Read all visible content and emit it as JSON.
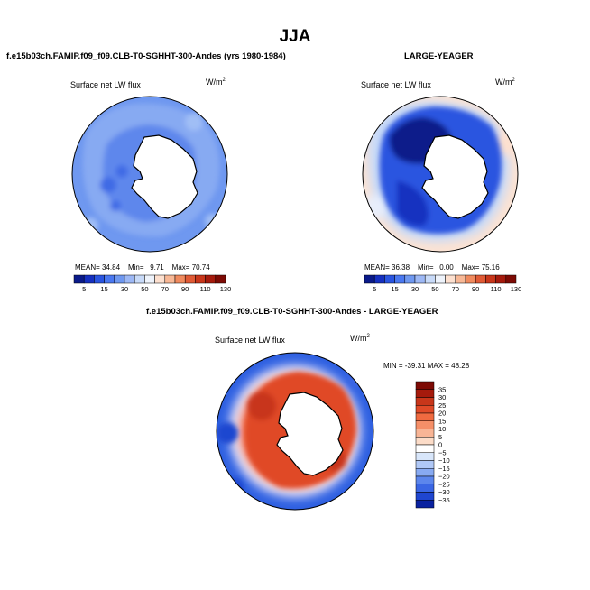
{
  "title": "JJA",
  "colors": {
    "ocean_base": "#6f98f0",
    "land": "#ffffff",
    "coast": "#000000"
  },
  "chart_data": [
    {
      "type": "heatmap",
      "projection": "polar-stereographic-south",
      "title": "f.e15b03ch.FAMIP.f09_f09.CLB-T0-SGHHT-300-Andes (yrs 1980-1984)",
      "variable": "Surface net LW flux",
      "units_base": "W/m",
      "units_sup": "2",
      "stats": {
        "mean_label": "MEAN=",
        "mean": "34.84",
        "min_label": "Min=",
        "min": "9.71",
        "max_label": "Max=",
        "max": "70.74"
      },
      "colorbar": {
        "orientation": "horizontal",
        "tick_labels": [
          "5",
          "15",
          "30",
          "50",
          "70",
          "90",
          "110",
          "130"
        ],
        "colors": [
          "#0a1a8a",
          "#1530c0",
          "#2a55e0",
          "#4a78f0",
          "#6f98f0",
          "#9db8f5",
          "#c8daf8",
          "#eef3fb",
          "#fde0cf",
          "#f8b896",
          "#f08a5e",
          "#e05a35",
          "#c8361a",
          "#a51a0c",
          "#7d0a04"
        ]
      }
    },
    {
      "type": "heatmap",
      "projection": "polar-stereographic-south",
      "title": "LARGE-YEAGER",
      "variable": "Surface net LW flux",
      "units_base": "W/m",
      "units_sup": "2",
      "stats": {
        "mean_label": "MEAN=",
        "mean": "36.38",
        "min_label": "Min=",
        "min": "0.00",
        "max_label": "Max=",
        "max": "75.16"
      },
      "colorbar": {
        "orientation": "horizontal",
        "tick_labels": [
          "5",
          "15",
          "30",
          "50",
          "70",
          "90",
          "110",
          "130"
        ],
        "colors": [
          "#0a1a8a",
          "#1530c0",
          "#2a55e0",
          "#4a78f0",
          "#6f98f0",
          "#9db8f5",
          "#c8daf8",
          "#eef3fb",
          "#fde0cf",
          "#f8b896",
          "#f08a5e",
          "#e05a35",
          "#c8361a",
          "#a51a0c",
          "#7d0a04"
        ]
      }
    },
    {
      "type": "heatmap",
      "projection": "polar-stereographic-south",
      "title": "f.e15b03ch.FAMIP.f09_f09.CLB-T0-SGHHT-300-Andes - LARGE-YEAGER",
      "variable": "Surface net LW flux",
      "units_base": "W/m",
      "units_sup": "2",
      "stats_text": "MIN = -39.31  MAX =  48.28",
      "colorbar": {
        "orientation": "vertical",
        "tick_labels": [
          "35",
          "30",
          "25",
          "20",
          "15",
          "10",
          "5",
          "0",
          "−5",
          "−10",
          "−15",
          "−20",
          "−25",
          "−30",
          "−35"
        ],
        "colors": [
          "#7d0a04",
          "#a51a0c",
          "#c8361a",
          "#e04a28",
          "#f06a40",
          "#f58f68",
          "#f8b596",
          "#fcdcc8",
          "#ffffff",
          "#d8e6fa",
          "#b0c8f6",
          "#88aaf2",
          "#5c86ec",
          "#3a66e4",
          "#1f46d0",
          "#0a22a0"
        ]
      }
    }
  ]
}
